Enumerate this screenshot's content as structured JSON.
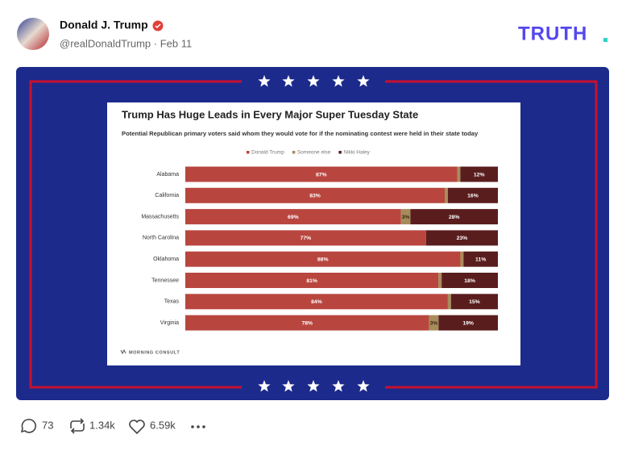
{
  "post": {
    "name": "Donald J. Trump",
    "handle": "@realDonaldTrump · Feb 11",
    "logo": "TRUTH",
    "replies": "73",
    "reposts": "1.34k",
    "likes": "6.59k"
  },
  "chart_data": {
    "type": "stacked-bar-horizontal",
    "title": "Trump Has Huge Leads in Every Major Super Tuesday State",
    "subtitle": "Potential Republican primary voters said whom they would vote for if the nominating contest were held in their state today",
    "source": "MORNING CONSULT",
    "categories": [
      "Alabama",
      "California",
      "Massachusetts",
      "North Carolina",
      "Oklahoma",
      "Tennessee",
      "Texas",
      "Virginia"
    ],
    "xlim": [
      0,
      100
    ],
    "series": [
      {
        "name": "Donald Trump",
        "color": "#b8463f",
        "values": [
          87,
          83,
          69,
          77,
          88,
          81,
          84,
          78
        ],
        "value_labels": [
          "87%",
          "83%",
          "69%",
          "77%",
          "88%",
          "81%",
          "84%",
          "78%"
        ]
      },
      {
        "name": "Someone else",
        "color": "#a88b5b",
        "values": [
          1,
          1,
          3,
          0,
          1,
          1,
          1,
          3
        ],
        "value_labels": [
          null,
          null,
          "3%",
          null,
          null,
          null,
          null,
          "3%"
        ]
      },
      {
        "name": "Nikki Haley",
        "color": "#5a1d1d",
        "values": [
          12,
          16,
          28,
          23,
          11,
          18,
          15,
          19
        ],
        "value_labels": [
          "12%",
          "16%",
          "28%",
          "23%",
          "11%",
          "18%",
          "15%",
          "19%"
        ]
      }
    ]
  }
}
